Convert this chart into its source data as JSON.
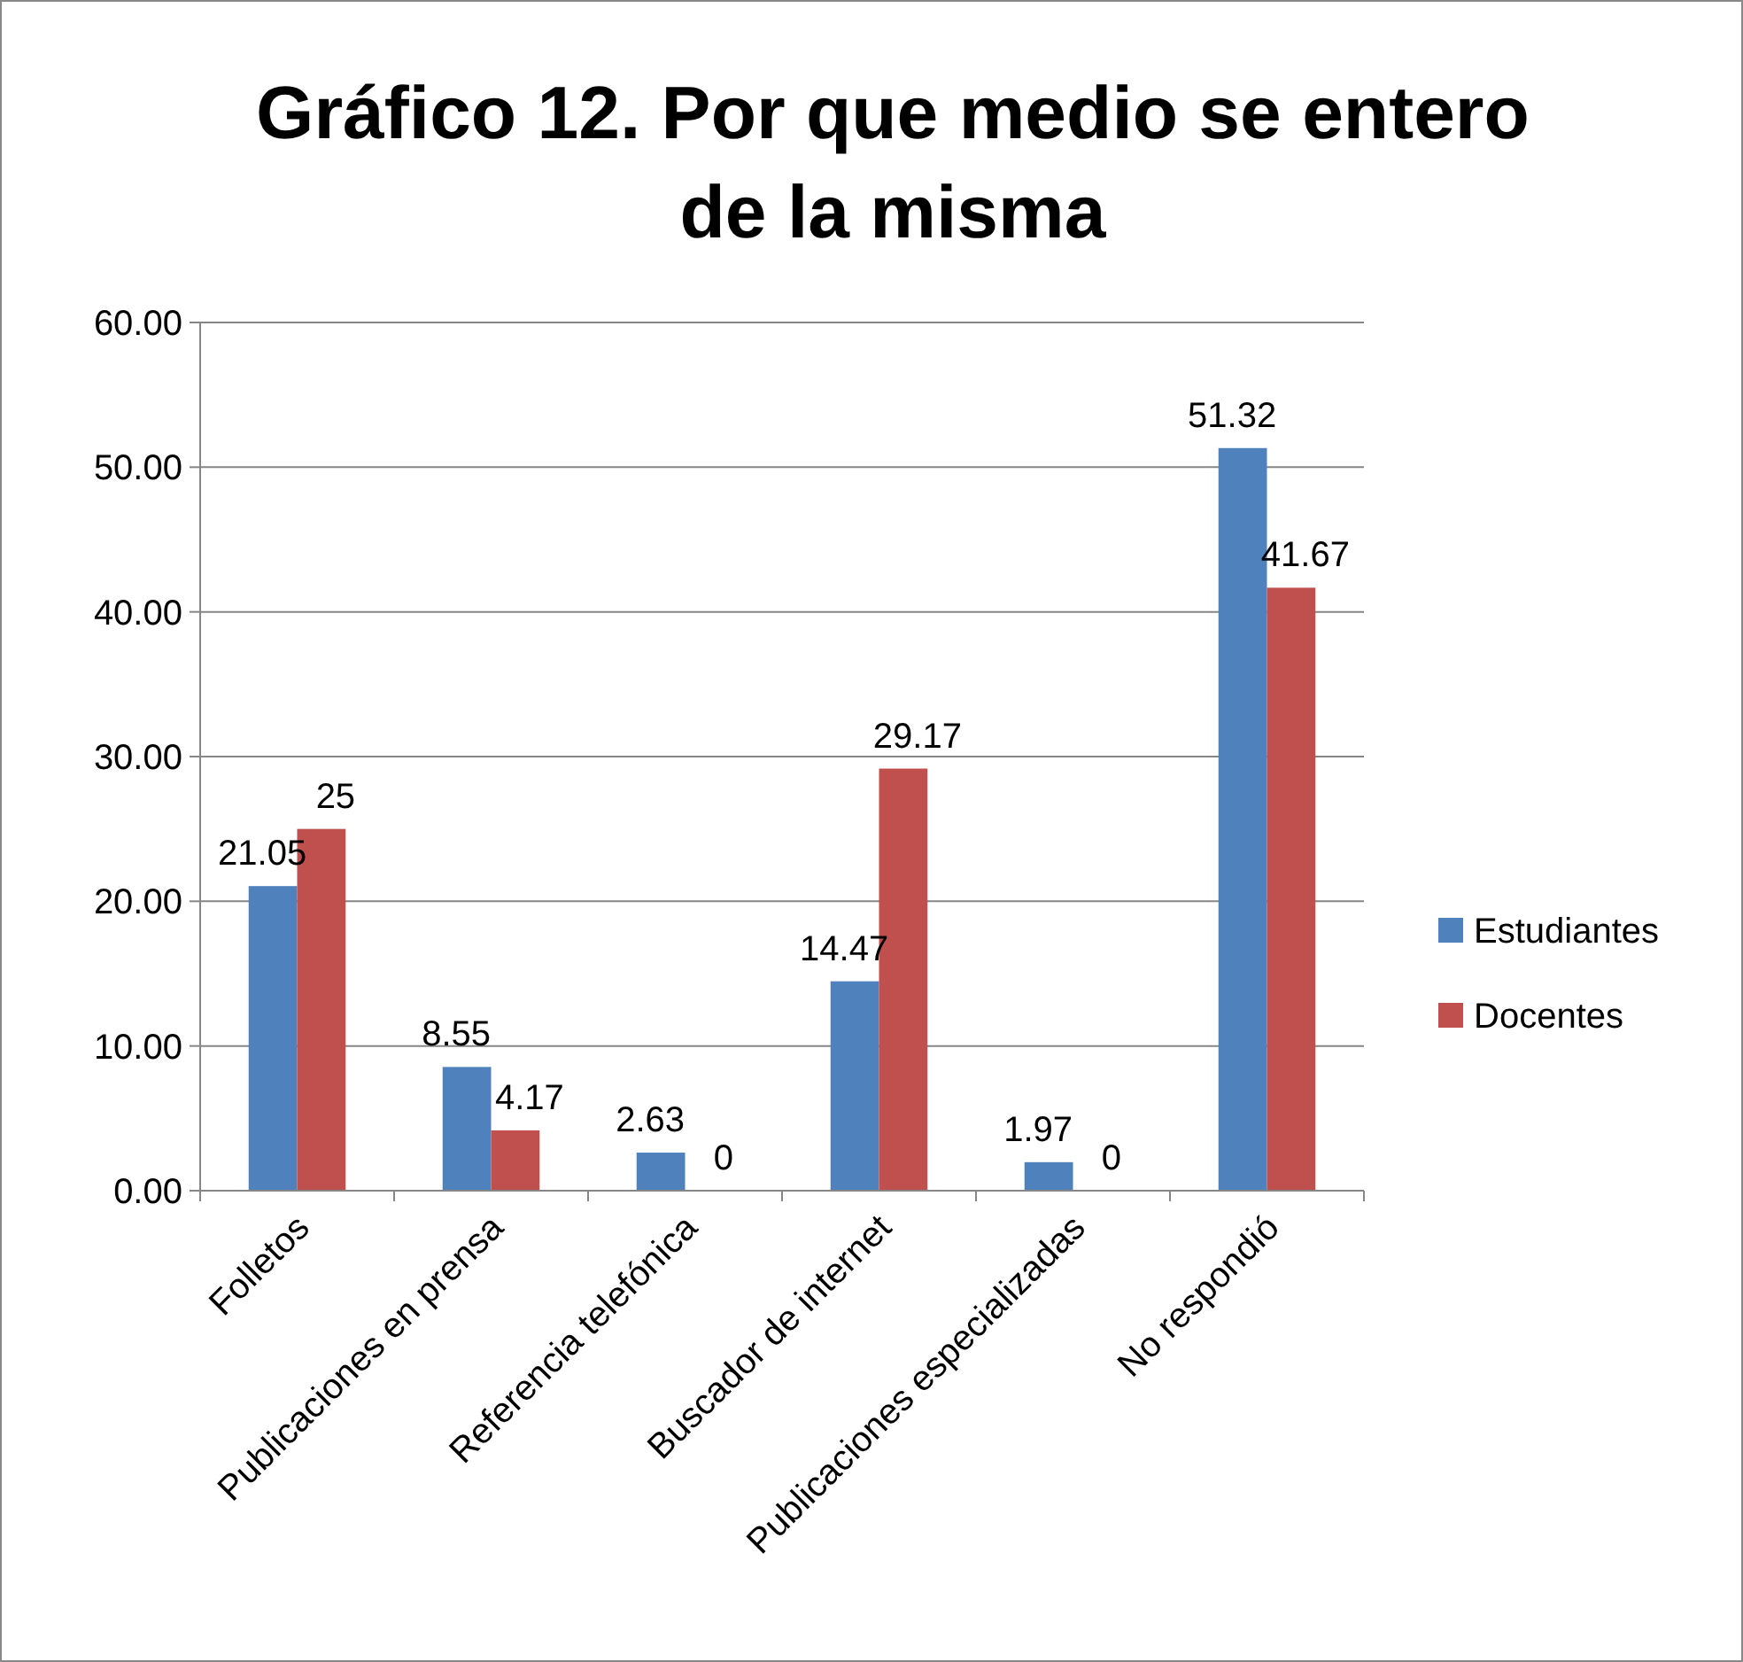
{
  "chart_data": {
    "type": "bar",
    "title": "Gráfico 12. Por que medio se entero de la misma",
    "categories": [
      "Folletos",
      "Publicaciones en prensa",
      "Referencia telefónica",
      "Buscador de internet",
      "Publicaciones especializadas",
      "No respondió"
    ],
    "series": [
      {
        "name": "Estudiantes",
        "color": "#4f81bd",
        "values": [
          21.05,
          8.55,
          2.63,
          14.47,
          1.97,
          51.32
        ]
      },
      {
        "name": "Docentes",
        "color": "#c0504d",
        "values": [
          25,
          4.17,
          0,
          29.17,
          0,
          41.67
        ]
      }
    ],
    "ylim": [
      0,
      60
    ],
    "yticks": [
      {
        "value": 0,
        "label": "0.00"
      },
      {
        "value": 10,
        "label": "10.00"
      },
      {
        "value": 20,
        "label": "20.00"
      },
      {
        "value": 30,
        "label": "30.00"
      },
      {
        "value": 40,
        "label": "40.00"
      },
      {
        "value": 50,
        "label": "50.00"
      },
      {
        "value": 60,
        "label": "60.00"
      }
    ],
    "grid": "y",
    "legend": "right",
    "data_labels": true
  }
}
